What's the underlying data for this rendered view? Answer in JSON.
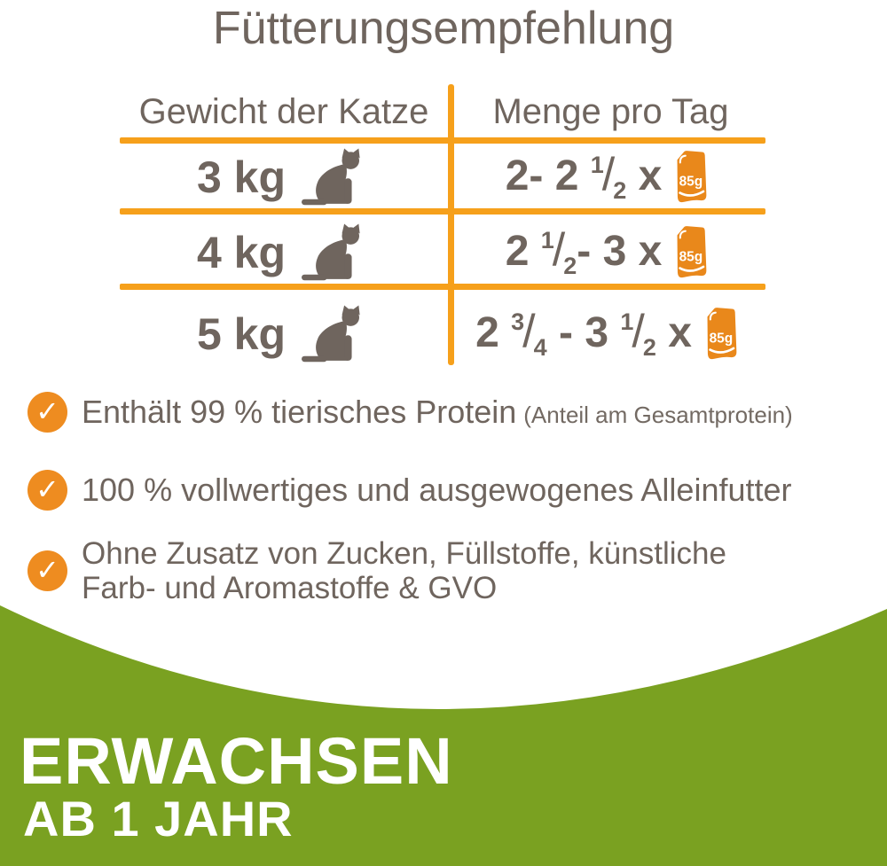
{
  "title": "Fütterungsempfehlung",
  "colors": {
    "text_gray": "#6F655E",
    "line_orange": "#F6A01B",
    "check_orange": "#EE8C20",
    "pouch_orange": "#E9881B",
    "footer_green": "#7AA121",
    "white": "#FFFFFF"
  },
  "table": {
    "headers": [
      "Gewicht der Katze",
      "Menge pro Tag"
    ],
    "rows": [
      {
        "weight": "3 kg",
        "icon": "cat-icon",
        "amount": [
          {
            "k": "t",
            "v": "2- 2 "
          },
          {
            "k": "sup",
            "v": "1"
          },
          {
            "k": "sl",
            "v": "/"
          },
          {
            "k": "sub",
            "v": "2"
          },
          {
            "k": "t",
            "v": " x"
          }
        ],
        "pouch_label": "85g"
      },
      {
        "weight": "4 kg",
        "icon": "cat-icon",
        "amount": [
          {
            "k": "t",
            "v": "2 "
          },
          {
            "k": "sup",
            "v": "1"
          },
          {
            "k": "sl",
            "v": "/"
          },
          {
            "k": "sub",
            "v": "2"
          },
          {
            "k": "t",
            "v": "- 3 x"
          }
        ],
        "pouch_label": "85g"
      },
      {
        "weight": "5 kg",
        "icon": "cat-icon",
        "amount": [
          {
            "k": "t",
            "v": "2 "
          },
          {
            "k": "sup",
            "v": "3"
          },
          {
            "k": "sl",
            "v": "/"
          },
          {
            "k": "sub",
            "v": "4"
          },
          {
            "k": "t",
            "v": " - 3 "
          },
          {
            "k": "sup",
            "v": "1"
          },
          {
            "k": "sl",
            "v": "/"
          },
          {
            "k": "sub",
            "v": "2"
          },
          {
            "k": "t",
            "v": " x"
          }
        ],
        "pouch_label": "85g"
      }
    ]
  },
  "bullets": [
    {
      "icon": "check-circle-icon",
      "check": "✓",
      "text": "Enthält 99 % tierisches Protein",
      "note": "(Anteil am Gesamtprotein)"
    },
    {
      "icon": "check-circle-icon",
      "check": "✓",
      "text": "100 % vollwertiges und ausgewogenes Alleinfutter",
      "note": ""
    },
    {
      "icon": "check-circle-icon",
      "check": "✓",
      "text": "Ohne Zusatz von Zucken, Füllstoffe, künstliche Farb- und Aromastoffe & GVO",
      "note": ""
    }
  ],
  "footer": {
    "line1": "ERWACHSEN",
    "line2": "AB 1 JAHR"
  }
}
